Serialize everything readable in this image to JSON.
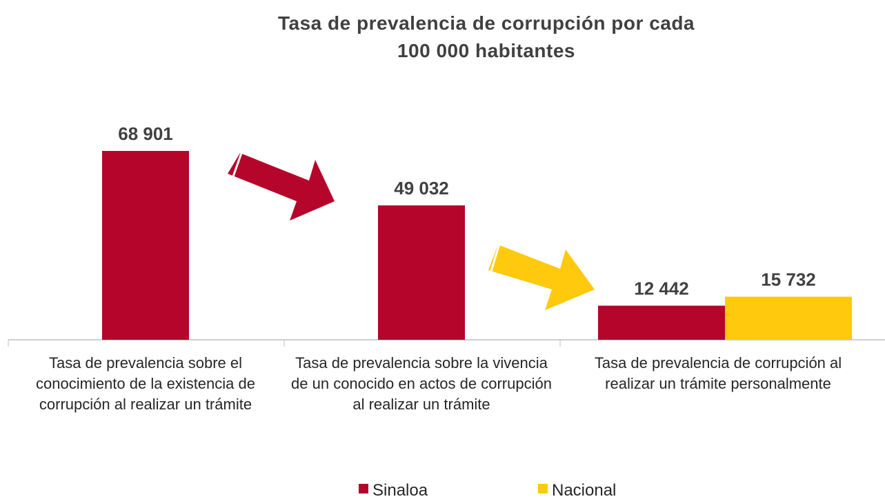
{
  "chart_data": {
    "type": "bar",
    "title": "Tasa de prevalencia de corrupción por cada 100 000 habitantes",
    "categories": [
      "Tasa de prevalencia sobre el conocimiento de la existencia de corrupción al realizar un trámite",
      "Tasa de prevalencia sobre la vivencia de un conocido en actos de corrupción al realizar un trámite",
      "Tasa de prevalencia de corrupción al realizar un trámite personalmente"
    ],
    "series": [
      {
        "name": "Sinaloa",
        "color": "#b5052b",
        "values": [
          68901,
          49032,
          12442
        ],
        "value_labels": [
          "68 901",
          "49 032",
          "12 442"
        ]
      },
      {
        "name": "Nacional",
        "color": "#ffc90e",
        "values": [
          null,
          null,
          15732
        ],
        "value_labels": [
          null,
          null,
          "15 732"
        ]
      }
    ]
  }
}
